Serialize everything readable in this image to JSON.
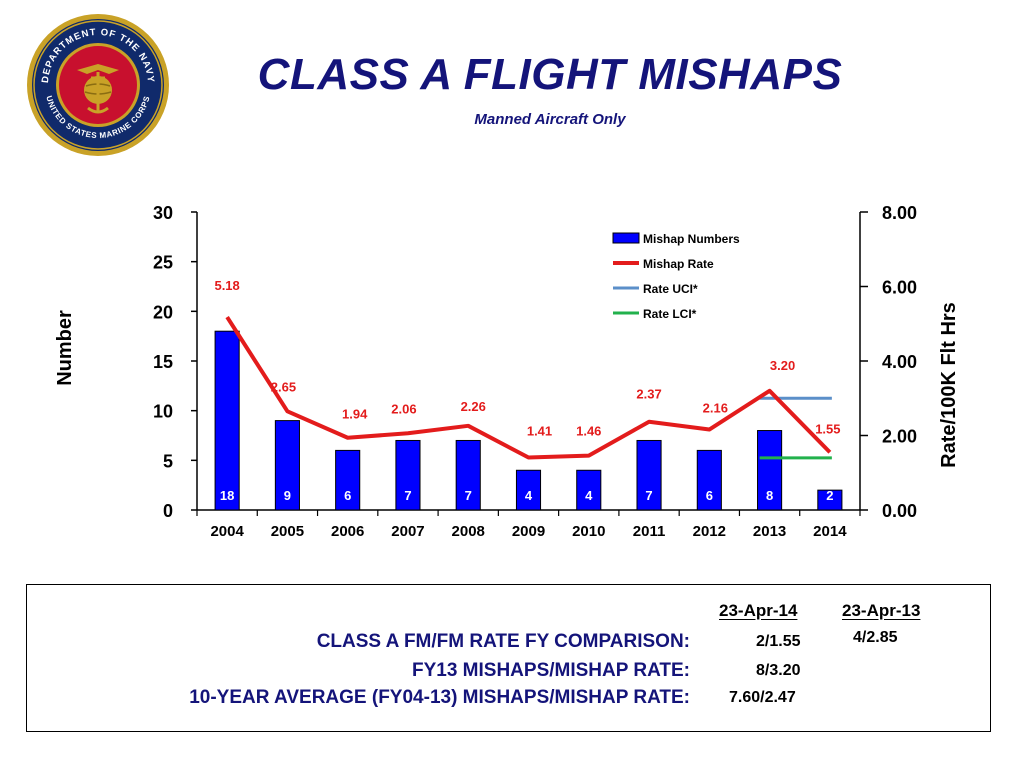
{
  "header": {
    "title": "CLASS A FLIGHT MISHAPS",
    "subtitle": "Manned Aircraft Only",
    "seal_text_top": "DEPARTMENT OF THE NAVY",
    "seal_text_bottom": "UNITED STATES MARINE CORPS"
  },
  "chart_data": {
    "type": "bar",
    "categories": [
      "2004",
      "2005",
      "2006",
      "2007",
      "2008",
      "2009",
      "2010",
      "2011",
      "2012",
      "2013",
      "2014"
    ],
    "ylabel": "Number",
    "ylabel_right": "Rate/100K Flt Hrs",
    "ylim": [
      0,
      30
    ],
    "ylim_right": [
      0,
      8
    ],
    "yticks": [
      "0",
      "5",
      "10",
      "15",
      "20",
      "25",
      "30"
    ],
    "yticks_right": [
      "0.00",
      "2.00",
      "4.00",
      "6.00",
      "8.00"
    ],
    "legend_position": "top-right",
    "series": [
      {
        "name": "Mishap Numbers",
        "kind": "bar",
        "axis": "left",
        "color": "#0000ff",
        "values": [
          18,
          9,
          6,
          7,
          7,
          4,
          4,
          7,
          6,
          8,
          2
        ],
        "labels": [
          "18",
          "9",
          "6",
          "7",
          "7",
          "4",
          "4",
          "7",
          "6",
          "8",
          "2"
        ]
      },
      {
        "name": "Mishap Rate",
        "kind": "line",
        "axis": "right",
        "color": "#e31c1c",
        "values": [
          5.18,
          2.65,
          1.94,
          2.06,
          2.26,
          1.41,
          1.46,
          2.37,
          2.16,
          3.2,
          1.55
        ],
        "labels": [
          "5.18",
          "2.65",
          "1.94",
          "2.06",
          "2.26",
          "1.41",
          "1.46",
          "2.37",
          "2.16",
          "3.20",
          "1.55"
        ]
      },
      {
        "name": "Rate UCI*",
        "kind": "segment",
        "axis": "right",
        "color": "#5b8fc9",
        "from": "2013",
        "to": "2014",
        "value": 3.0
      },
      {
        "name": "Rate LCI*",
        "kind": "segment",
        "axis": "right",
        "color": "#22b14c",
        "from": "2013",
        "to": "2014",
        "value": 1.4
      }
    ]
  },
  "stats": {
    "col1_header": "23-Apr-14",
    "col2_header": "23-Apr-13",
    "rows": [
      {
        "label": "CLASS A FM/FM RATE FY COMPARISON:",
        "value1": "2/1.55",
        "value2": "4/2.85"
      },
      {
        "label": "FY13 MISHAPS/MISHAP RATE:",
        "value1": "8/3.20",
        "value2": ""
      },
      {
        "label": "10-YEAR AVERAGE (FY04-13) MISHAPS/MISHAP RATE:",
        "value1": "7.60/2.47",
        "value2": ""
      }
    ]
  }
}
